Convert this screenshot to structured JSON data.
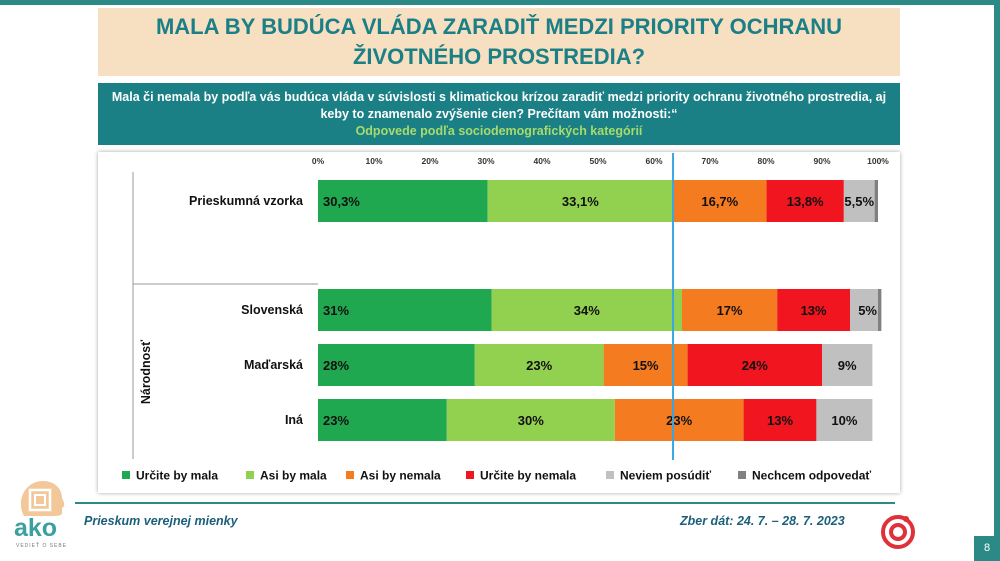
{
  "title": "MALA BY BUDÚCA VLÁDA ZARADIŤ MEDZI PRIORITY OCHRANU ŽIVOTNÉHO PROSTREDIA?",
  "question": "Mala či nemala by podľa vás budúca vláda v súvislosti s klimatickou krízou zaradiť medzi priority ochranu životného prostredia, aj keby to znamenalo zvýšenie cien? Prečítam vám možnosti:“",
  "question_sub": "Odpovede podľa sociodemografických kategórií",
  "footer": {
    "left": "Prieskum verejnej mienky",
    "right": "Zber dát: 24. 7. – 28. 7. 2023",
    "page": "8",
    "logo_text": "ako",
    "logo_tagline": "VEDIEŤ O SEBE"
  },
  "colors": {
    "teal": "#1b7f86",
    "title_bg": "#f7dfc2",
    "subtitle_green": "#a7dc6a",
    "reference_line": "#3aa6e0",
    "brand_red": "#e0303a"
  },
  "chart_data": {
    "type": "bar",
    "orientation": "horizontal",
    "stacked": true,
    "xlim": [
      0,
      100
    ],
    "xticks": [
      "0%",
      "10%",
      "20%",
      "30%",
      "40%",
      "50%",
      "60%",
      "70%",
      "80%",
      "90%",
      "100%"
    ],
    "reference_line_x": 63.4,
    "group_label": "Národnosť",
    "legend_position": "bottom",
    "series": [
      {
        "name": "Určite by mala",
        "color": "#1fa84f"
      },
      {
        "name": "Asi by mala",
        "color": "#92d050"
      },
      {
        "name": "Asi by nemala",
        "color": "#f47b20"
      },
      {
        "name": "Určite by nemala",
        "color": "#f0151e"
      },
      {
        "name": "Neviem posúdiť",
        "color": "#c0c0c0"
      },
      {
        "name": "Nechcem odpovedať",
        "color": "#808080"
      }
    ],
    "rows": [
      {
        "category": "Prieskumná vzorka",
        "values": [
          30.3,
          33.1,
          16.7,
          13.8,
          5.5,
          0.6
        ],
        "labels": [
          "30,3%",
          "33,1%",
          "16,7%",
          "13,8%",
          "5,5%",
          ""
        ]
      },
      {
        "category": "Slovenská",
        "values": [
          31,
          34,
          17,
          13,
          5,
          0.6
        ],
        "labels": [
          "31%",
          "34%",
          "17%",
          "13%",
          "5%",
          ""
        ]
      },
      {
        "category": "Maďarská",
        "values": [
          28,
          23,
          15,
          24,
          9,
          0
        ],
        "labels": [
          "28%",
          "23%",
          "15%",
          "24%",
          "9%",
          ""
        ]
      },
      {
        "category": "Iná",
        "values": [
          23,
          30,
          23,
          13,
          10,
          0
        ],
        "labels": [
          "23%",
          "30%",
          "23%",
          "13%",
          "10%",
          ""
        ]
      }
    ]
  }
}
